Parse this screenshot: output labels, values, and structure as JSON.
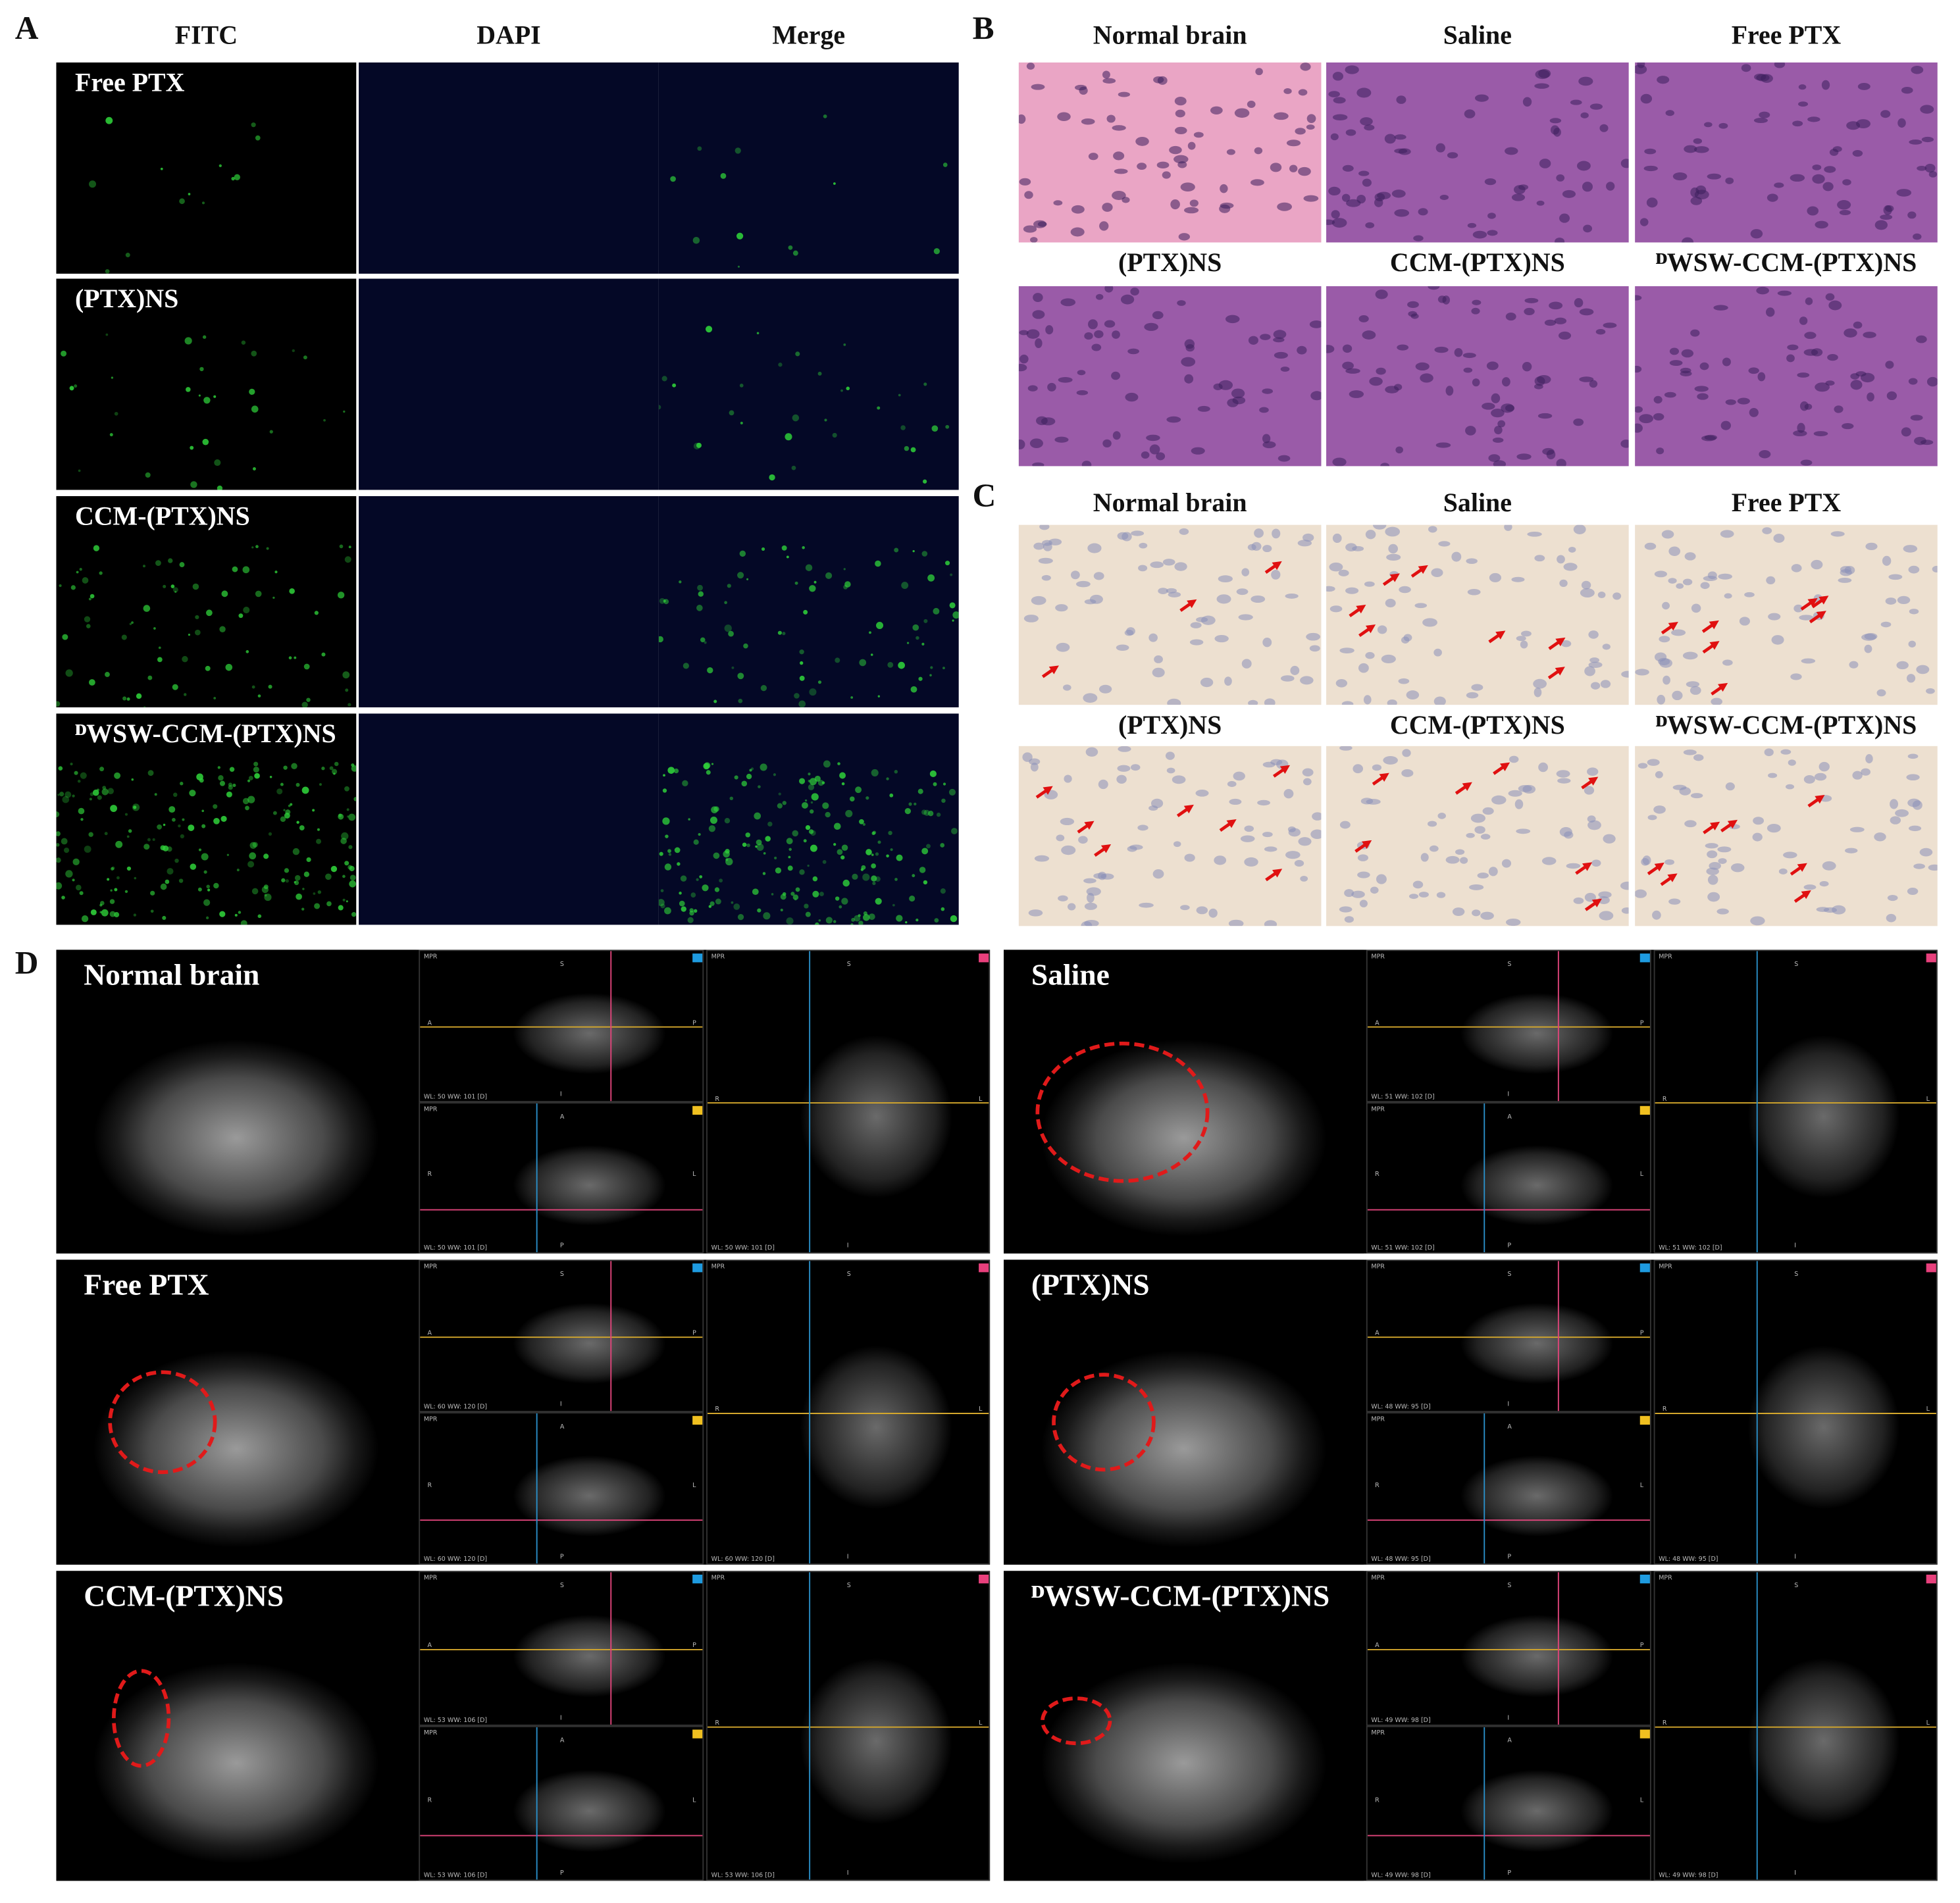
{
  "panel_a": {
    "label": "A",
    "columns": [
      "FITC",
      "DAPI",
      "Merge"
    ],
    "rows": [
      "Free PTX",
      "(PTX)NS",
      "CCM-(PTX)NS",
      "ᴰWSW-CCM-(PTX)NS"
    ]
  },
  "panel_b": {
    "label": "B",
    "images": [
      "Normal brain",
      "Saline",
      "Free PTX",
      "(PTX)NS",
      "CCM-(PTX)NS",
      "ᴰWSW-CCM-(PTX)NS"
    ]
  },
  "panel_c": {
    "label": "C",
    "images": [
      "Normal brain",
      "Saline",
      "Free PTX",
      "(PTX)NS",
      "CCM-(PTX)NS",
      "ᴰWSW-CCM-(PTX)NS"
    ]
  },
  "panel_d": {
    "label": "D",
    "view_labels": {
      "mpr": "MPR",
      "s": "S",
      "i": "I",
      "a": "A",
      "p": "P",
      "r": "R",
      "l": "L"
    },
    "scans": [
      {
        "label": "Normal brain",
        "window": "WL: 50 WW: 101 [D]"
      },
      {
        "label": "Saline",
        "window": "WL: 51 WW: 102 [D]"
      },
      {
        "label": "Free PTX",
        "window": "WL: 60 WW: 120 [D]"
      },
      {
        "label": "(PTX)NS",
        "window": "WL: 48 WW: 95 [D]"
      },
      {
        "label": "CCM-(PTX)NS",
        "window": "WL: 53 WW: 106 [D]"
      },
      {
        "label": "ᴰWSW-CCM-(PTX)NS",
        "window": "WL: 49 WW: 98 [D]"
      }
    ]
  }
}
